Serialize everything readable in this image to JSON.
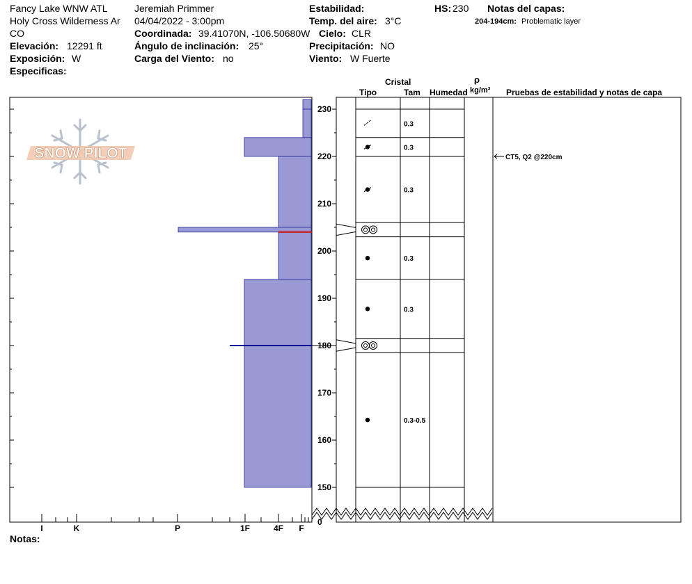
{
  "header": {
    "location_line1": "Fancy Lake WNW ATL",
    "location_line2": "Holy Cross Wilderness Ar",
    "location_line3": "CO",
    "elevation_label": "Elevación:",
    "elevation_value": "12291 ft",
    "aspect_label": "Exposición:",
    "aspect_value": "W",
    "specifics_label": "Especificas:",
    "observer": "Jeremiah Primmer",
    "datetime": "04/04/2022 - 3:00pm",
    "coord_label": "Coordinada:",
    "coord_value": "39.41070N, -106.50680W",
    "slope_label": "Ángulo de inclinación:",
    "slope_value": "25°",
    "windload_label": "Carga del Viento:",
    "windload_value": "no",
    "stability_label": "Estabilidad:",
    "airtemp_label": "Temp. del aire:",
    "airtemp_value": "3°C",
    "sky_label": "Cielo:",
    "sky_value": "CLR",
    "precip_label": "Precipitación:",
    "precip_value": "NO",
    "wind_label": "Viento:",
    "wind_value": "W Fuerte",
    "hs_label": "HS:",
    "hs_value": "230",
    "layer_notes_label": "Notas del capas:",
    "layer_note_range": "204-194cm:",
    "layer_note_text": "Problematic layer"
  },
  "columns": {
    "crystal": "Cristal",
    "type": "Tipo",
    "size": "Tam",
    "moisture": "Humedad",
    "rho": "ρ",
    "density_unit": "kg/m³",
    "tests": "Pruebas de estabilidad y notas de capa"
  },
  "hardness_ticks": [
    "I",
    "K",
    "P",
    "1F",
    "4F",
    "F"
  ],
  "notes_label": "Notas:",
  "logo_text": "SNOW PILOT",
  "colors": {
    "layer_fill": "#9999d6",
    "layer_stroke": "#2a2a99",
    "red_line": "#cc0000",
    "blue_line": "#000099"
  },
  "chart_data": {
    "type": "snow_profile",
    "y_axis": {
      "label": "",
      "unit": "cm",
      "ylim": [
        150,
        232
      ],
      "ticks": [
        150,
        160,
        170,
        180,
        190,
        200,
        210,
        220,
        230
      ],
      "bottom_label": "0"
    },
    "x_axis": {
      "categories": [
        "I",
        "K",
        "P",
        "1F",
        "4F",
        "F"
      ],
      "reversed": true
    },
    "hardness_layers": [
      {
        "top": 232,
        "bottom": 230,
        "hardness": "F+"
      },
      {
        "top": 230,
        "bottom": 224,
        "hardness": "F+"
      },
      {
        "top": 224,
        "bottom": 220,
        "hardness": "1F"
      },
      {
        "top": 220,
        "bottom": 205.0,
        "hardness": "4F"
      },
      {
        "top": 205.0,
        "bottom": 204.0,
        "hardness": "P+"
      },
      {
        "top": 204.0,
        "bottom": 194,
        "hardness": "4F"
      },
      {
        "top": 194,
        "bottom": 150,
        "hardness": "1F"
      }
    ],
    "layers": [
      {
        "top": 230,
        "bottom": 224,
        "grain": "precipitation particles",
        "size": "0.3"
      },
      {
        "top": 224,
        "bottom": 220,
        "grain": "decomposing fragments",
        "size": "0.3"
      },
      {
        "top": 220,
        "bottom": 206,
        "grain": "decomposing fragments",
        "size": "0.3"
      },
      {
        "top": 206,
        "bottom": 203,
        "grain": "surface hoar",
        "size": ""
      },
      {
        "top": 203,
        "bottom": 194,
        "grain": "rounded grains",
        "size": "0.3"
      },
      {
        "top": 194,
        "bottom": 181.5,
        "grain": "rounded grains",
        "size": "0.3"
      },
      {
        "top": 181.5,
        "bottom": 178.5,
        "grain": "surface hoar",
        "size": ""
      },
      {
        "top": 178.5,
        "bottom": 150,
        "grain": "rounded grains",
        "size": "0.3-0.5"
      }
    ],
    "markers": [
      {
        "depth": 204,
        "color": "red"
      },
      {
        "depth": 180,
        "color": "blue"
      }
    ],
    "tests": [
      {
        "depth": 220,
        "result": "CT5, Q2 @220cm"
      }
    ]
  }
}
